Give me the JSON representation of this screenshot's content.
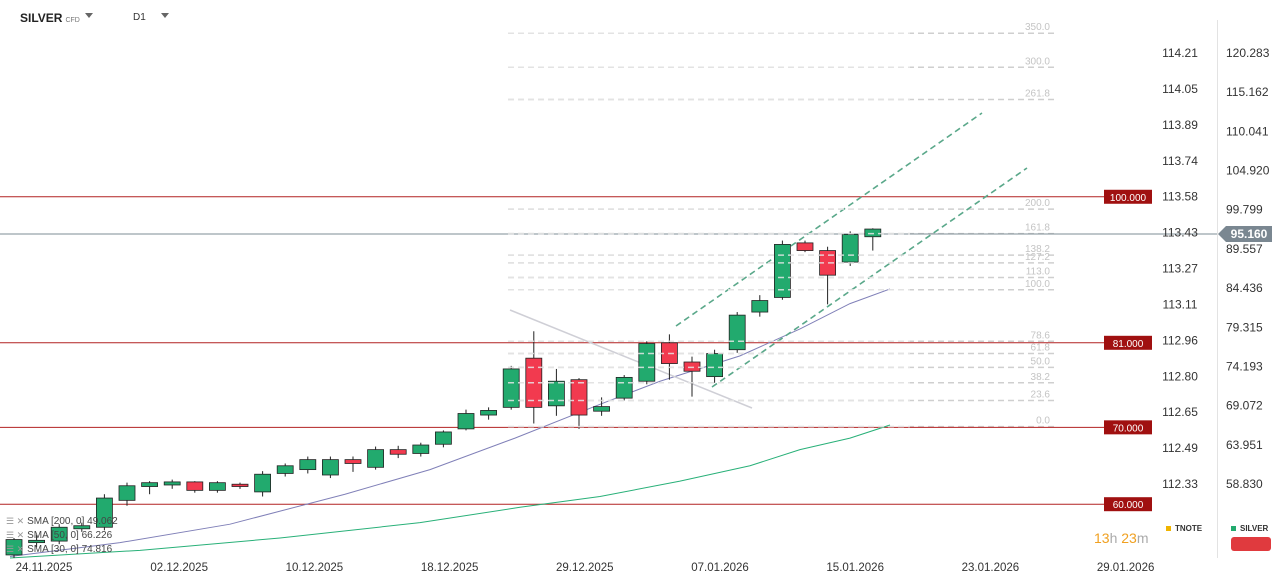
{
  "header": {
    "symbol": "SILVER",
    "symbol_sub": "CFD",
    "timeframe": "D1"
  },
  "colors": {
    "bull": "#22aa6e",
    "bear": "#f23a4f",
    "level_line": "#b22222",
    "level_badge": "#a01010",
    "price_line": "#7c8c96",
    "price_badge": "#7a8791",
    "fib": "#cfcfcf",
    "channel": "#5aa88a",
    "sma_slow": "#8080b8",
    "sma_fast": "#28b078",
    "countdown": "#f0a020",
    "tnote": "#f0b400",
    "silver": "#22aa6e"
  },
  "legend": [
    {
      "label": "SMA [200, 0] 49.062"
    },
    {
      "label": "SMA [50, 0] 66.226"
    },
    {
      "label": "SMA [30, 0] 74.816"
    }
  ],
  "countdown": {
    "hours": "13",
    "h_unit": "h",
    "minutes": "23",
    "m_unit": "m"
  },
  "mini_legend": {
    "tnote": "TNOTE",
    "silver": "SILVER"
  },
  "chart_data": {
    "type": "candlestick",
    "x_ticks": [
      "24.11.2025",
      "02.12.2025",
      "10.12.2025",
      "18.12.2025",
      "29.12.2025",
      "07.01.2026",
      "15.01.2026",
      "23.01.2026",
      "29.01.2026"
    ],
    "y_ticks_main": [
      "120.283",
      "115.162",
      "110.041",
      "104.920",
      "99.799",
      "89.557",
      "84.436",
      "79.315",
      "74.193",
      "69.072",
      "63.951",
      "58.830"
    ],
    "y_ticks_secondary": [
      "114.21",
      "114.05",
      "113.89",
      "113.74",
      "113.58",
      "113.43",
      "113.27",
      "113.11",
      "112.96",
      "112.80",
      "112.65",
      "112.49",
      "112.33"
    ],
    "ylim": [
      53.0,
      123.0
    ],
    "current_price": "95.160",
    "current_price_value": 95.16,
    "levels": [
      {
        "label": "100.000",
        "value": 100.0
      },
      {
        "label": "81.000",
        "value": 81.0
      },
      {
        "label": "70.000",
        "value": 70.0
      },
      {
        "label": "60.000",
        "value": 60.0
      }
    ],
    "fib_levels": [
      {
        "label": "350.0",
        "value": 121.28
      },
      {
        "label": "300.0",
        "value": 116.85
      },
      {
        "label": "261.8",
        "value": 112.66
      },
      {
        "label": "200.0",
        "value": 98.4
      },
      {
        "label": "161.8",
        "value": 95.2
      },
      {
        "label": "138.2",
        "value": 92.4
      },
      {
        "label": "127.2",
        "value": 91.4
      },
      {
        "label": "113.0",
        "value": 89.5
      },
      {
        "label": "100.0",
        "value": 87.9
      },
      {
        "label": "78.6",
        "value": 81.2
      },
      {
        "label": "61.8",
        "value": 79.6
      },
      {
        "label": "50.0",
        "value": 77.8
      },
      {
        "label": "38.2",
        "value": 75.8
      },
      {
        "label": "23.6",
        "value": 73.5
      },
      {
        "label": "0.0",
        "value": 70.1
      }
    ],
    "candles": [
      {
        "o": 53.4,
        "h": 55.6,
        "l": 53.0,
        "c": 55.4
      },
      {
        "o": 55.0,
        "h": 56.0,
        "l": 54.4,
        "c": 55.3
      },
      {
        "o": 55.2,
        "h": 57.4,
        "l": 54.8,
        "c": 57.0
      },
      {
        "o": 56.8,
        "h": 57.6,
        "l": 56.4,
        "c": 57.2
      },
      {
        "o": 57.0,
        "h": 61.3,
        "l": 56.6,
        "c": 60.8
      },
      {
        "o": 60.5,
        "h": 62.8,
        "l": 59.8,
        "c": 62.4
      },
      {
        "o": 62.3,
        "h": 63.0,
        "l": 61.3,
        "c": 62.8
      },
      {
        "o": 62.5,
        "h": 63.2,
        "l": 62.0,
        "c": 62.9
      },
      {
        "o": 62.9,
        "h": 63.0,
        "l": 61.5,
        "c": 61.8
      },
      {
        "o": 61.8,
        "h": 63.0,
        "l": 61.5,
        "c": 62.8
      },
      {
        "o": 62.6,
        "h": 62.8,
        "l": 62.0,
        "c": 62.3
      },
      {
        "o": 61.6,
        "h": 64.3,
        "l": 61.0,
        "c": 63.9
      },
      {
        "o": 64.0,
        "h": 65.3,
        "l": 63.6,
        "c": 65.0
      },
      {
        "o": 64.5,
        "h": 66.2,
        "l": 64.0,
        "c": 65.8
      },
      {
        "o": 63.8,
        "h": 66.2,
        "l": 63.4,
        "c": 65.8
      },
      {
        "o": 65.8,
        "h": 66.2,
        "l": 64.2,
        "c": 65.3
      },
      {
        "o": 64.8,
        "h": 67.5,
        "l": 64.5,
        "c": 67.1
      },
      {
        "o": 67.1,
        "h": 67.6,
        "l": 66.0,
        "c": 66.5
      },
      {
        "o": 66.6,
        "h": 68.0,
        "l": 66.2,
        "c": 67.7
      },
      {
        "o": 67.8,
        "h": 69.6,
        "l": 67.4,
        "c": 69.4
      },
      {
        "o": 69.8,
        "h": 72.3,
        "l": 69.6,
        "c": 71.8
      },
      {
        "o": 71.6,
        "h": 72.6,
        "l": 71.0,
        "c": 72.2
      },
      {
        "o": 72.6,
        "h": 78.0,
        "l": 72.3,
        "c": 77.6
      },
      {
        "o": 79.0,
        "h": 82.5,
        "l": 70.5,
        "c": 72.6
      },
      {
        "o": 72.8,
        "h": 77.6,
        "l": 71.5,
        "c": 76.0
      },
      {
        "o": 76.2,
        "h": 76.4,
        "l": 69.8,
        "c": 71.6
      },
      {
        "o": 72.1,
        "h": 73.9,
        "l": 71.5,
        "c": 72.7
      },
      {
        "o": 73.8,
        "h": 76.8,
        "l": 73.5,
        "c": 76.5
      },
      {
        "o": 76.0,
        "h": 81.2,
        "l": 75.6,
        "c": 80.9
      },
      {
        "o": 81.0,
        "h": 82.1,
        "l": 76.2,
        "c": 78.3
      },
      {
        "o": 78.5,
        "h": 79.2,
        "l": 74.0,
        "c": 77.3
      },
      {
        "o": 76.6,
        "h": 80.1,
        "l": 75.8,
        "c": 79.6
      },
      {
        "o": 80.1,
        "h": 85.0,
        "l": 79.7,
        "c": 84.6
      },
      {
        "o": 85.0,
        "h": 87.2,
        "l": 84.4,
        "c": 86.5
      },
      {
        "o": 86.9,
        "h": 94.3,
        "l": 86.6,
        "c": 93.8
      },
      {
        "o": 94.0,
        "h": 94.3,
        "l": 92.8,
        "c": 93.0
      },
      {
        "o": 93.0,
        "h": 93.5,
        "l": 86.0,
        "c": 89.8
      },
      {
        "o": 91.5,
        "h": 95.5,
        "l": 91.0,
        "c": 95.1
      },
      {
        "o": 94.8,
        "h": 95.9,
        "l": 93.0,
        "c": 95.8
      }
    ],
    "sma_slow": [
      {
        "x": 10,
        "y": 53.2
      },
      {
        "x": 120,
        "y": 55.0
      },
      {
        "x": 230,
        "y": 57.4
      },
      {
        "x": 345,
        "y": 61.3
      },
      {
        "x": 430,
        "y": 64.5
      },
      {
        "x": 515,
        "y": 68.6
      },
      {
        "x": 600,
        "y": 73.0
      },
      {
        "x": 660,
        "y": 76.0
      },
      {
        "x": 740,
        "y": 79.3
      },
      {
        "x": 800,
        "y": 82.8
      },
      {
        "x": 850,
        "y": 86.1
      },
      {
        "x": 890,
        "y": 88.0
      }
    ],
    "sma_fast": [
      {
        "x": 10,
        "y": 53.0
      },
      {
        "x": 140,
        "y": 54.0
      },
      {
        "x": 280,
        "y": 55.6
      },
      {
        "x": 420,
        "y": 57.6
      },
      {
        "x": 520,
        "y": 59.6
      },
      {
        "x": 600,
        "y": 61.0
      },
      {
        "x": 680,
        "y": 63.0
      },
      {
        "x": 750,
        "y": 65.0
      },
      {
        "x": 800,
        "y": 67.1
      },
      {
        "x": 850,
        "y": 68.6
      },
      {
        "x": 890,
        "y": 70.3
      }
    ]
  }
}
